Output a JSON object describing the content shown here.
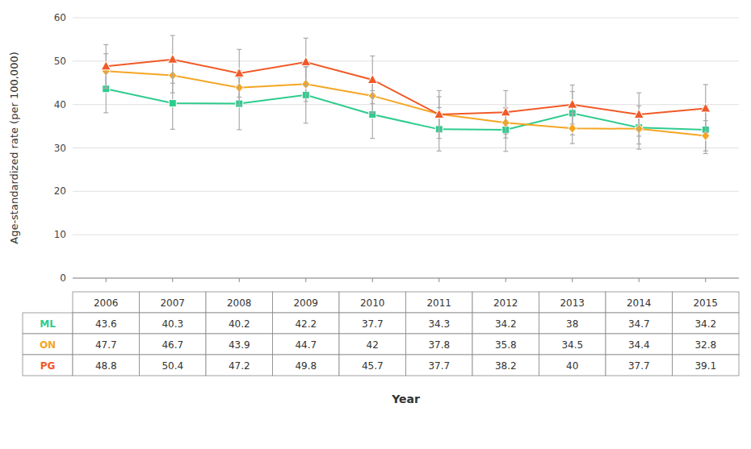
{
  "chart_data": {
    "type": "line",
    "x": [
      2006,
      2007,
      2008,
      2009,
      2010,
      2011,
      2012,
      2013,
      2014,
      2015
    ],
    "series": [
      {
        "name": "ML",
        "color": "#2ecc8e",
        "marker": "square",
        "values": [
          43.6,
          40.3,
          40.2,
          42.2,
          37.7,
          34.3,
          34.2,
          38.0,
          34.7,
          34.2
        ],
        "errors": [
          5.5,
          6.0,
          6.0,
          6.5,
          5.5,
          5.0,
          5.0,
          5.0,
          5.0,
          5.5
        ]
      },
      {
        "name": "ON",
        "color": "#f5a623",
        "marker": "diamond",
        "values": [
          47.7,
          46.7,
          43.9,
          44.7,
          42.0,
          37.8,
          35.8,
          34.5,
          34.4,
          32.8
        ],
        "errors": [
          4.0,
          4.0,
          4.0,
          4.0,
          4.0,
          4.0,
          3.5,
          3.5,
          3.5,
          3.5
        ]
      },
      {
        "name": "PG",
        "color": "#f05a28",
        "marker": "triangle",
        "values": [
          48.8,
          50.4,
          47.2,
          49.8,
          45.7,
          37.7,
          38.2,
          40.0,
          37.7,
          39.1
        ],
        "errors": [
          5.0,
          5.5,
          5.5,
          5.5,
          5.5,
          5.5,
          5.0,
          4.5,
          5.0,
          5.5
        ]
      }
    ],
    "ylabel": "Age-standardized rate (per 100,000)",
    "xlabel": "Year",
    "xlim": [
      2005.5,
      2015.5
    ],
    "xticks": [
      2006,
      2007,
      2008,
      2009,
      2010,
      2011,
      2012,
      2013,
      2014,
      2015
    ],
    "ylim": [
      0,
      60
    ],
    "yticks": [
      0,
      10,
      20,
      30,
      40,
      50,
      60
    ],
    "grid": true,
    "tick_labels": "y"
  }
}
